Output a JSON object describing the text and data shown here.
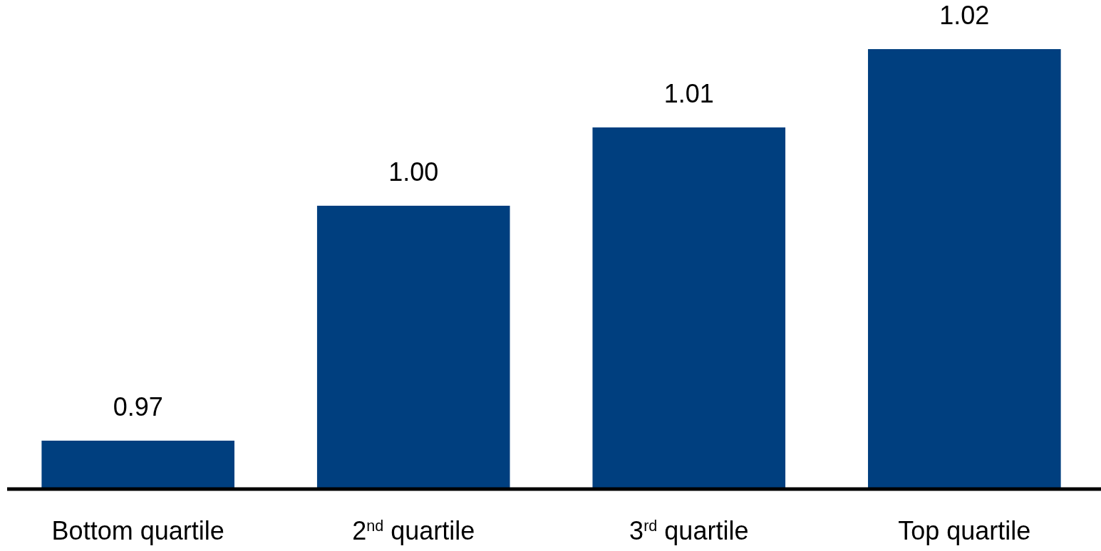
{
  "chart_data": {
    "type": "bar",
    "categories": [
      "Bottom quartile",
      "2$^{nd}$ quartile",
      "3$^{rd}$ quartile",
      "Top quartile"
    ],
    "values": [
      0.97,
      1.0,
      1.01,
      1.02
    ],
    "value_labels": [
      "0.97",
      "1.00",
      "1.01",
      "1.02"
    ],
    "color": "#003f7f",
    "ylim": [
      0.964,
      1.02
    ]
  }
}
